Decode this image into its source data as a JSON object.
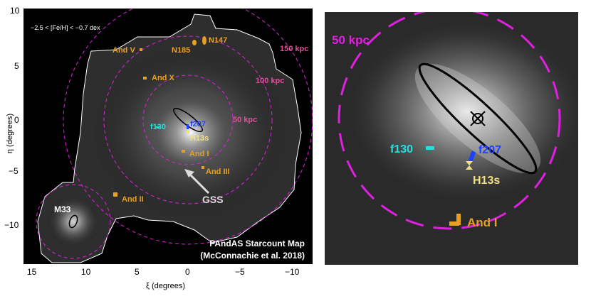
{
  "left": {
    "metallicity_range": "−2.5 < [Fe/H] < −0.7 dex",
    "credit_line1": "PAndAS Starcount Map",
    "credit_line2": "(McConnachie et al. 2018)",
    "radius_labels": [
      "150 kpc",
      "100 kpc",
      "50 kpc"
    ],
    "objects": {
      "and_v": "And V",
      "n185": "N185",
      "n147": "N147",
      "and_x": "And X",
      "f130": "f130",
      "f207": "f207",
      "h13s": "H13s",
      "and_i": "And I",
      "and_iii": "And III",
      "and_ii": "And II",
      "gss": "GSS",
      "m33": "M33"
    },
    "x_ticks": [
      "15",
      "10",
      "5",
      "0",
      "−5",
      "−10"
    ],
    "y_ticks": [
      "10",
      "5",
      "0",
      "−5",
      "−10"
    ],
    "xlabel": "ξ (degrees)",
    "ylabel": "η (degrees)"
  },
  "right": {
    "radius_label": "50 kpc",
    "f130": "f130",
    "f207": "f207",
    "h13s": "H13s",
    "and_i": "And I"
  },
  "colors": {
    "magenta": "#e020e0",
    "pink_label": "#e0509a",
    "orange": "#e8a020",
    "cyan": "#20e0e0",
    "blue": "#2040ff",
    "yellow": "#f0e080"
  }
}
